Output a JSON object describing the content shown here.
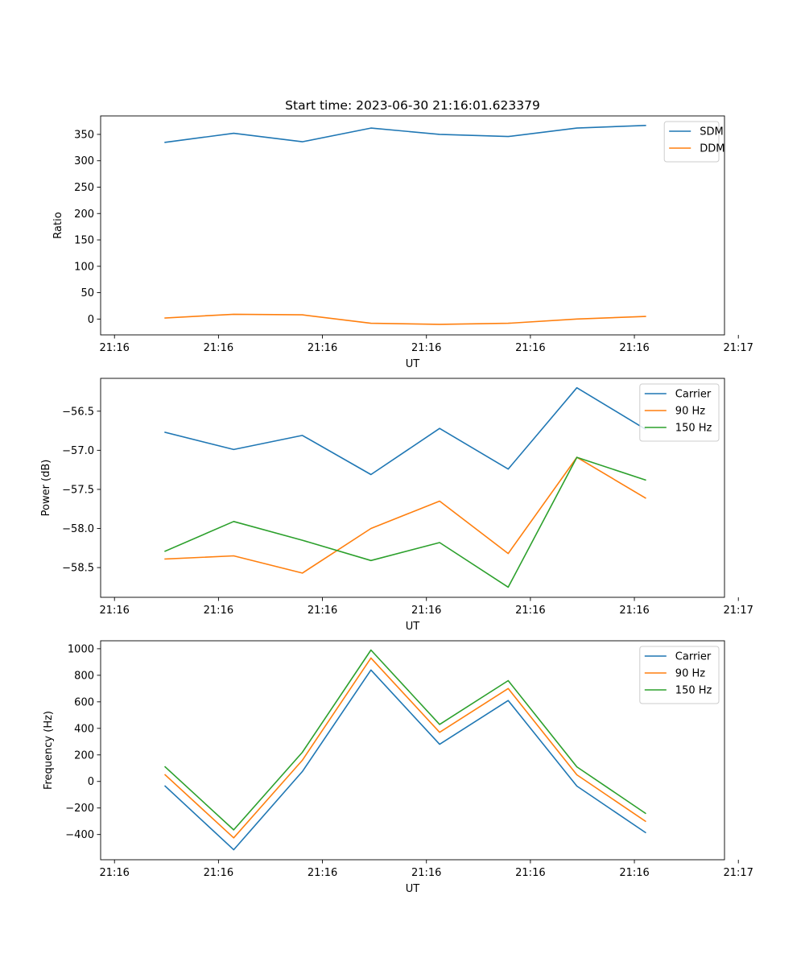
{
  "figure_title": "Start time: 2023-06-30 21:16:01.623379",
  "colors": {
    "blue": "#1f77b4",
    "orange": "#ff7f0e",
    "green": "#2ca02c"
  },
  "chart_data": [
    {
      "type": "line",
      "title": "",
      "xlabel": "UT",
      "ylabel": "Ratio",
      "xlim": [
        0,
        9
      ],
      "ylim": [
        -30,
        385
      ],
      "x_tick_positions": [
        0.2,
        1.7,
        3.2,
        4.7,
        6.2,
        7.7,
        9.2
      ],
      "x_tick_labels": [
        "21:16",
        "21:16",
        "21:16",
        "21:16",
        "21:16",
        "21:16",
        "21:17"
      ],
      "y_ticks": [
        0,
        50,
        100,
        150,
        200,
        250,
        300,
        350
      ],
      "x": [
        0.93,
        1.92,
        2.91,
        3.9,
        4.89,
        5.88,
        6.87,
        7.86
      ],
      "legend_position": "upper-right",
      "grid": false,
      "series": [
        {
          "name": "SDM",
          "color": "#1f77b4",
          "values": [
            335,
            352,
            336,
            362,
            350,
            346,
            362,
            367
          ]
        },
        {
          "name": "DDM",
          "color": "#ff7f0e",
          "values": [
            2,
            9,
            8,
            -8,
            -10,
            -8,
            0,
            5
          ]
        }
      ]
    },
    {
      "type": "line",
      "title": "",
      "xlabel": "UT",
      "ylabel": "Power (dB)",
      "xlim": [
        0,
        9
      ],
      "ylim": [
        -58.88,
        -56.08
      ],
      "x_tick_positions": [
        0.2,
        1.7,
        3.2,
        4.7,
        6.2,
        7.7,
        9.2
      ],
      "x_tick_labels": [
        "21:16",
        "21:16",
        "21:16",
        "21:16",
        "21:16",
        "21:16",
        "21:17"
      ],
      "y_ticks": [
        -58.5,
        -58.0,
        -57.5,
        -57.0,
        -56.5
      ],
      "y_tick_labels": [
        "−58.5",
        "−58.0",
        "−57.5",
        "−57.0",
        "−56.5"
      ],
      "x": [
        0.93,
        1.92,
        2.91,
        3.9,
        4.89,
        5.88,
        6.87,
        7.86
      ],
      "legend_position": "upper-right",
      "grid": false,
      "series": [
        {
          "name": "Carrier",
          "color": "#1f77b4",
          "values": [
            -56.77,
            -56.99,
            -56.81,
            -57.31,
            -56.72,
            -57.24,
            -56.2,
            -56.73
          ]
        },
        {
          "name": "90 Hz",
          "color": "#ff7f0e",
          "values": [
            -58.39,
            -58.35,
            -58.57,
            -58.0,
            -57.65,
            -58.32,
            -57.09,
            -57.61
          ]
        },
        {
          "name": "150 Hz",
          "color": "#2ca02c",
          "values": [
            -58.29,
            -57.91,
            -58.15,
            -58.41,
            -58.18,
            -58.75,
            -57.09,
            -57.38
          ]
        }
      ]
    },
    {
      "type": "line",
      "title": "",
      "xlabel": "UT",
      "ylabel": "Frequency (Hz)",
      "xlim": [
        0,
        9
      ],
      "ylim": [
        -590,
        1060
      ],
      "x_tick_positions": [
        0.2,
        1.7,
        3.2,
        4.7,
        6.2,
        7.7,
        9.2
      ],
      "x_tick_labels": [
        "21:16",
        "21:16",
        "21:16",
        "21:16",
        "21:16",
        "21:16",
        "21:17"
      ],
      "y_ticks": [
        -400,
        -200,
        0,
        200,
        400,
        600,
        800,
        1000
      ],
      "y_tick_labels": [
        "−400",
        "−200",
        "0",
        "200",
        "400",
        "600",
        "800",
        "1000"
      ],
      "x": [
        0.93,
        1.92,
        2.91,
        3.9,
        4.89,
        5.88,
        6.87,
        7.86
      ],
      "legend_position": "upper-right",
      "grid": false,
      "series": [
        {
          "name": "Carrier",
          "color": "#1f77b4",
          "values": [
            -35,
            -515,
            75,
            840,
            280,
            610,
            -35,
            -385
          ]
        },
        {
          "name": "90 Hz",
          "color": "#ff7f0e",
          "values": [
            50,
            -425,
            160,
            930,
            370,
            700,
            50,
            -300
          ]
        },
        {
          "name": "150 Hz",
          "color": "#2ca02c",
          "values": [
            110,
            -365,
            220,
            990,
            430,
            760,
            110,
            -240
          ]
        }
      ]
    }
  ]
}
